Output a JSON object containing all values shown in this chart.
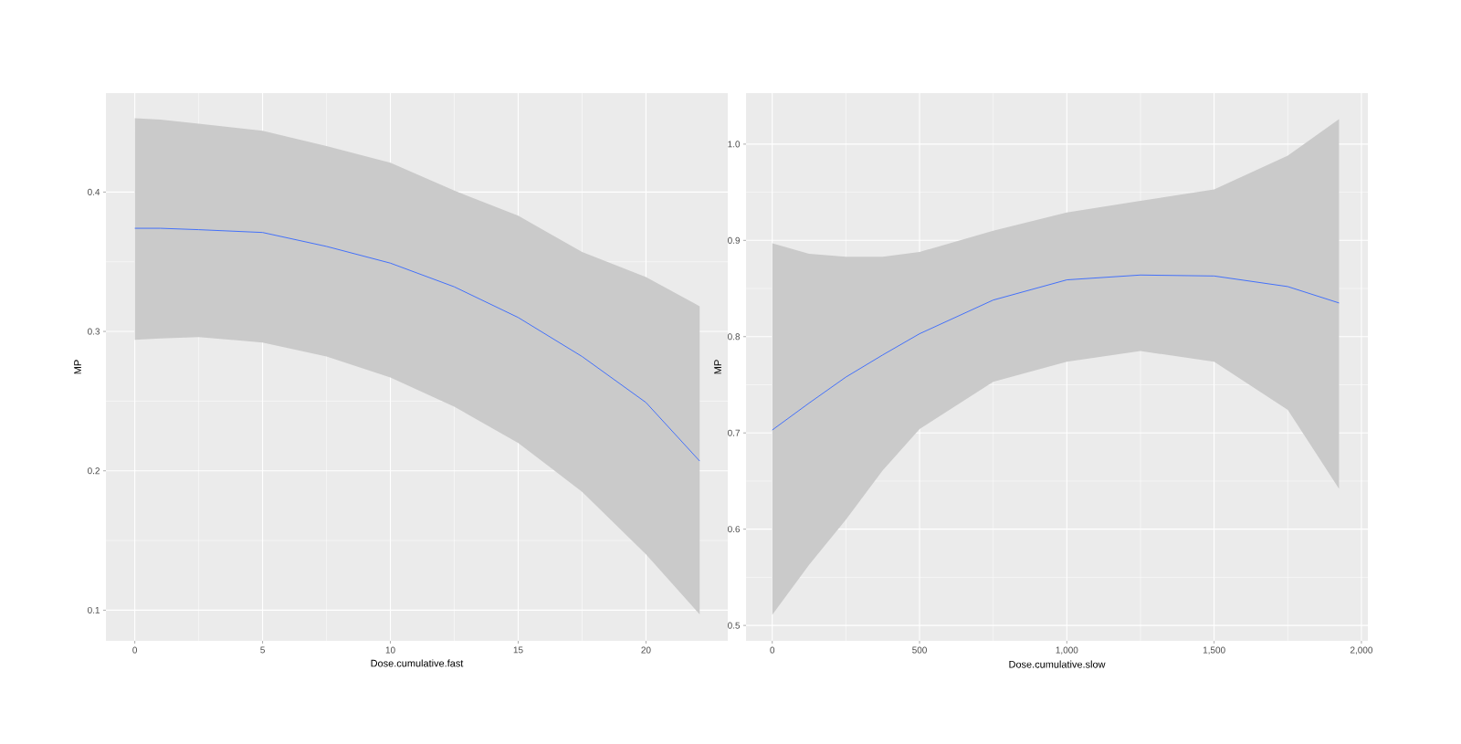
{
  "chart_data": [
    {
      "type": "line",
      "xlabel": "Dose.cumulative.fast",
      "ylabel": "MP",
      "xlim": [
        -1.13,
        23.2
      ],
      "ylim": [
        0.078,
        0.471
      ],
      "xticks": [
        0,
        5,
        10,
        15,
        20
      ],
      "yticks": [
        0.1,
        0.2,
        0.3,
        0.4
      ],
      "grid": true,
      "series": [
        {
          "color": "#3366ff",
          "x": [
            0,
            1,
            2.5,
            5,
            7.5,
            10,
            12.5,
            15,
            17.5,
            20,
            22.1
          ],
          "values": [
            0.374,
            0.374,
            0.373,
            0.371,
            0.361,
            0.349,
            0.332,
            0.31,
            0.282,
            0.249,
            0.207
          ],
          "upper": [
            0.453,
            0.452,
            0.449,
            0.444,
            0.433,
            0.421,
            0.401,
            0.383,
            0.357,
            0.339,
            0.318
          ],
          "lower": [
            0.294,
            0.295,
            0.296,
            0.292,
            0.282,
            0.267,
            0.246,
            0.22,
            0.185,
            0.14,
            0.097
          ]
        }
      ]
    },
    {
      "type": "line",
      "xlabel": "Dose.cumulative.slow",
      "ylabel": "MP",
      "xlim": [
        -89,
        2022
      ],
      "ylim": [
        0.484,
        1.053
      ],
      "xticks": [
        0,
        500,
        {
          "value": 1000,
          "label": "1,000"
        },
        {
          "value": 1500,
          "label": "1,500"
        },
        {
          "value": 2000,
          "label": "2,000"
        }
      ],
      "yticks": [
        0.5,
        0.6,
        0.7,
        0.8,
        0.9,
        {
          "value": 1.0,
          "label": "1.0"
        }
      ],
      "grid": true,
      "series": [
        {
          "color": "#3366ff",
          "x": [
            0,
            125,
            250,
            375,
            500,
            750,
            1000,
            1250,
            1500,
            1750,
            1924
          ],
          "values": [
            0.703,
            0.731,
            0.758,
            0.781,
            0.803,
            0.838,
            0.859,
            0.864,
            0.863,
            0.852,
            0.835
          ],
          "upper": [
            0.897,
            0.886,
            0.883,
            0.883,
            0.888,
            0.91,
            0.929,
            0.941,
            0.953,
            0.988,
            1.026
          ],
          "lower": [
            0.511,
            0.563,
            0.61,
            0.661,
            0.704,
            0.753,
            0.774,
            0.785,
            0.774,
            0.724,
            0.642
          ]
        }
      ]
    }
  ]
}
